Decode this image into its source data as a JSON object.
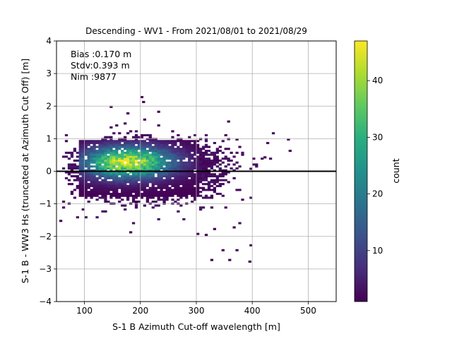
{
  "chart_data": {
    "type": "heatmap",
    "title": "Descending - WV1 - From 2021/08/01 to 2021/08/29",
    "xlabel": "S-1 B Azimuth Cut-off wavelength [m]",
    "ylabel": "S-1 B - WW3 Hs (truncated at Azimuth Cut Off) [m]",
    "xlim": [
      50,
      550
    ],
    "ylim": [
      -4,
      4
    ],
    "xticks": [
      "100",
      "200",
      "300",
      "400",
      "500"
    ],
    "yticks": [
      "4",
      "3",
      "2",
      "1",
      "0",
      "−1",
      "−2",
      "−3",
      "−4"
    ],
    "grid": true,
    "reference_line_y": 0,
    "annotation": [
      "Bias :0.170 m",
      "Stdv:0.393 m",
      "Nim :9877"
    ],
    "colorbar": {
      "label": "count",
      "range": [
        1,
        47
      ],
      "ticks": [
        "10",
        "20",
        "30",
        "40"
      ],
      "colormap": "viridis"
    },
    "density_summary": {
      "peak_x": 175,
      "peak_y": 0.25,
      "peak_count": 47,
      "core_x_range": [
        90,
        300
      ],
      "core_y_range": [
        -0.8,
        0.95
      ],
      "outliers": [
        [
          200,
          2.25
        ],
        [
          203,
          2.1
        ],
        [
          145,
          1.95
        ],
        [
          175,
          1.75
        ],
        [
          230,
          1.8
        ],
        [
          370,
          0.95
        ],
        [
          462,
          0.95
        ],
        [
          420,
          0.4
        ],
        [
          395,
          0.05
        ],
        [
          55,
          -1.55
        ],
        [
          95,
          -1.2
        ],
        [
          180,
          -1.9
        ],
        [
          300,
          -1.95
        ],
        [
          330,
          -1.8
        ],
        [
          365,
          -1.75
        ],
        [
          345,
          -2.45
        ],
        [
          370,
          -2.45
        ],
        [
          395,
          -2.3
        ],
        [
          325,
          -2.75
        ],
        [
          357,
          -2.75
        ],
        [
          393,
          -2.8
        ]
      ]
    }
  }
}
